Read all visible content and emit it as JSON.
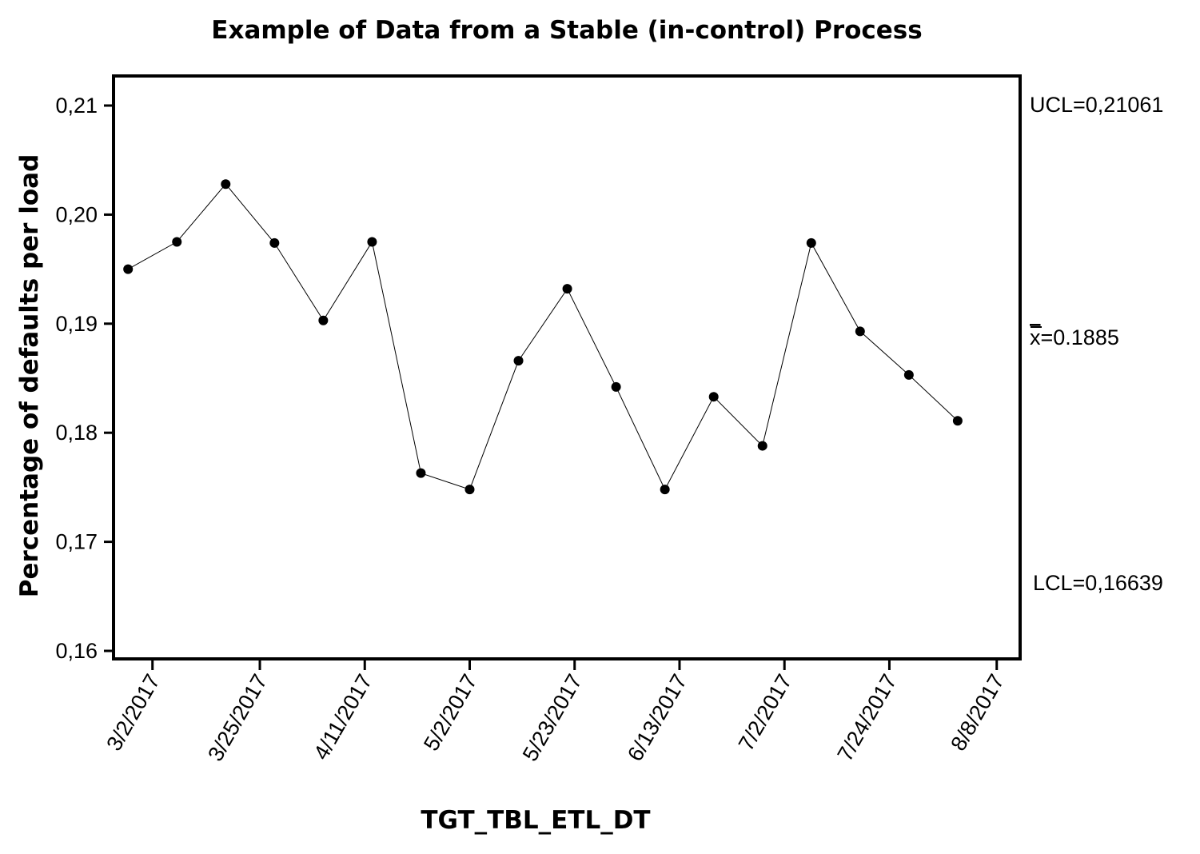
{
  "chart_data": {
    "type": "line",
    "title": "Example of Data from a Stable (in-control) Process",
    "xlabel": "TGT_TBL_ETL_DT",
    "ylabel": "Percentage of defaults per load",
    "ylim": [
      0.16,
      0.2125
    ],
    "y_ticks": [
      0.16,
      0.17,
      0.18,
      0.19,
      0.2,
      0.21
    ],
    "y_tick_labels": [
      "0,16",
      "0,17",
      "0,18",
      "0,19",
      "0,20",
      "0,21"
    ],
    "x_tick_labels": [
      "3/2/2017",
      "3/25/2017",
      "4/11/2017",
      "5/2/2017",
      "5/23/2017",
      "6/13/2017",
      "7/2/2017",
      "7/24/2017",
      "8/8/2017"
    ],
    "x_tick_positions": [
      0.5,
      2.7,
      4.85,
      7,
      9.15,
      11.3,
      13.45,
      15.6,
      17.8
    ],
    "xlim": [
      -0.2,
      18.05
    ],
    "grid": false,
    "series": [
      {
        "x": [
          0,
          1,
          2,
          3,
          4,
          5,
          6,
          7,
          8,
          9,
          10,
          11,
          12,
          13,
          14,
          15,
          16,
          17
        ],
        "values": [
          0.195,
          0.1975,
          0.2028,
          0.1974,
          0.1903,
          0.1975,
          0.1763,
          0.1748,
          0.1866,
          0.1932,
          0.1842,
          0.1748,
          0.1833,
          0.1788,
          0.1974,
          0.1893,
          0.1853,
          0.1811
        ]
      }
    ],
    "reference_lines": [
      {
        "name": "UCL",
        "value": 0.21061,
        "label": "UCL=0,21061",
        "color": "#c00000"
      },
      {
        "name": "mean",
        "value": 0.1885,
        "label_prefix": "x",
        "label_suffix": "=0.1885",
        "color": "#8fcf5a"
      },
      {
        "name": "LCL",
        "value": 0.16639,
        "label": "LCL=0,16639",
        "color": "#c00000"
      }
    ],
    "colors": {
      "line": "#000000",
      "point": "#000000",
      "control_limit": "#c00000",
      "center_line": "#8fcf5a"
    }
  }
}
